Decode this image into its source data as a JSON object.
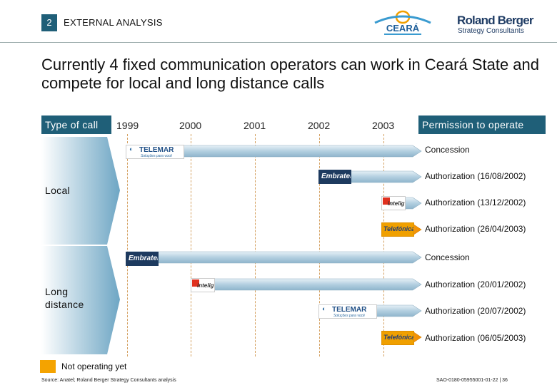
{
  "header": {
    "section_number": "2",
    "section_title": "EXTERNAL ANALYSIS",
    "logo_ceara": "CEARÁ",
    "logo_rb_name": "Roland Berger",
    "logo_rb_sub": "Strategy Consultants"
  },
  "headline": "Currently 4 fixed communication operators can work in Ceará State and compete for local and long distance calls",
  "table": {
    "type_header": "Type of call",
    "perm_header": "Permission to operate",
    "years": [
      "1999",
      "2000",
      "2001",
      "2002",
      "2003"
    ],
    "groups": [
      {
        "label": "Local",
        "rows": [
          {
            "operator": "TELEMAR",
            "logo_sub": "Soluções para você",
            "start_year": 1999.0,
            "permission": "Concession"
          },
          {
            "operator": "Embratel",
            "start_year": 2002.0,
            "permission": "Authorization (16/08/2002)"
          },
          {
            "operator": "intelig",
            "start_year": 2003.0,
            "permission": "Authorization (13/12/2002)"
          },
          {
            "operator": "Telefónica",
            "start_year": 2003.0,
            "not_operating": true,
            "permission": "Authorization (26/04/2003)"
          }
        ]
      },
      {
        "label": "Long distance",
        "rows": [
          {
            "operator": "Embratel",
            "start_year": 1999.0,
            "permission": "Concession"
          },
          {
            "operator": "intelig",
            "start_year": 2000.1,
            "permission": "Authorization (20/01/2002)"
          },
          {
            "operator": "TELEMAR",
            "logo_sub": "Soluções para você",
            "start_year": 2002.0,
            "permission": "Authorization (20/07/2002)"
          },
          {
            "operator": "Telefónica",
            "start_year": 2003.0,
            "not_operating": true,
            "permission": "Authorization (06/05/2003)"
          }
        ]
      }
    ]
  },
  "legend": {
    "not_operating": "Not operating yet"
  },
  "footer": {
    "source": "Source: Anatel; Roland Berger Strategy Consultants analysis",
    "docref": "SAO-0180-05955001-01-22 | 36"
  },
  "colors": {
    "accent": "#1f5f78",
    "not_operating": "#f4a300",
    "bar": "#b8d3e2"
  }
}
